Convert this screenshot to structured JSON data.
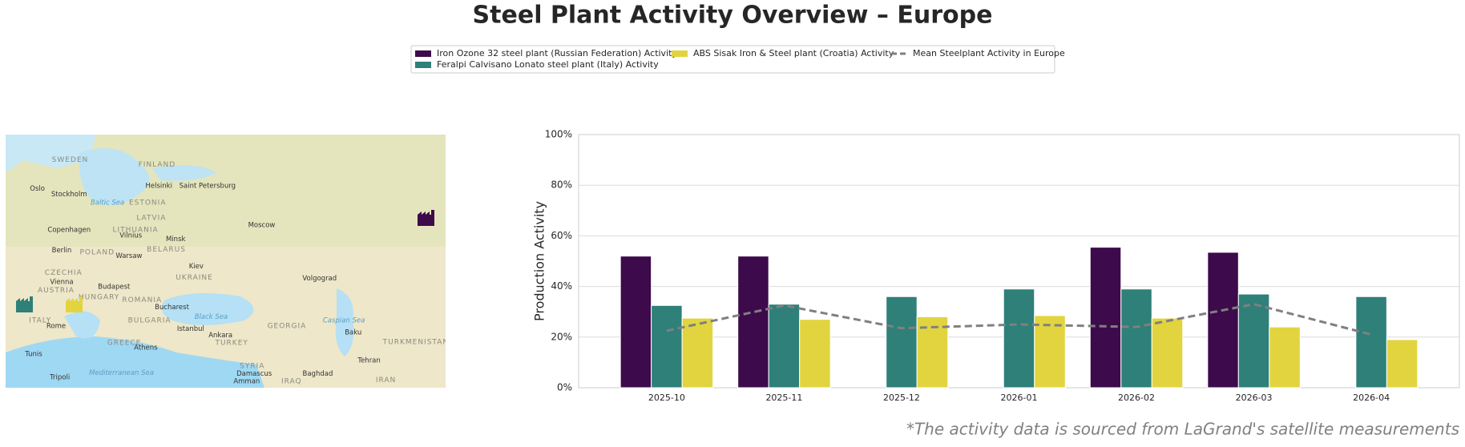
{
  "chart_data": {
    "type": "bar",
    "title": "Steel Plant Activity Overview – Europe",
    "ylabel": "Production Activity",
    "footnote": "*The activity data is sourced from LaGrand's satellite measurements",
    "categories": [
      "2025-10",
      "2025-11",
      "2025-12",
      "2026-01",
      "2026-02",
      "2026-03",
      "2026-04"
    ],
    "series": [
      {
        "name": "Iron Ozone 32 steel plant (Russian Federation) Activity",
        "color": "#3d0a4b",
        "values": [
          52,
          52,
          null,
          null,
          55.5,
          53.5,
          null
        ]
      },
      {
        "name": "Feralpi Calvisano Lonato steel plant (Italy) Activity",
        "color": "#2e8079",
        "values": [
          32.5,
          33,
          36,
          39,
          39,
          37,
          36
        ]
      },
      {
        "name": "ABS Sisak Iron & Steel plant (Croatia) Activity",
        "color": "#e2d43f",
        "values": [
          27.5,
          27,
          28,
          28.5,
          27.5,
          24,
          19
        ]
      },
      {
        "name": "Mean Steelplant Activity in Europe",
        "color": "#808080",
        "type": "line",
        "dash": true,
        "values": [
          22.5,
          32.5,
          23.5,
          25,
          24,
          33,
          21
        ]
      }
    ],
    "ylim": [
      0,
      100
    ],
    "yticks": [
      {
        "value": 0,
        "label": "0%"
      },
      {
        "value": 20,
        "label": "20%"
      },
      {
        "value": 40,
        "label": "40%"
      },
      {
        "value": 60,
        "label": "60%"
      },
      {
        "value": 80,
        "label": "80%"
      },
      {
        "value": 100,
        "label": "100%"
      }
    ],
    "grid": true,
    "legend": "top"
  },
  "map": {
    "labels": [
      "SWEDEN",
      "FINLAND",
      "Helsinki",
      "Saint Petersburg",
      "Oslo",
      "Stockholm",
      "Baltic Sea",
      "ESTONIA",
      "LATVIA",
      "Copenhagen",
      "LITHUANIA",
      "Vilnius",
      "Moscow",
      "Minsk",
      "BELARUS",
      "Berlin",
      "POLAND",
      "Warsaw",
      "Kiev",
      "UKRAINE",
      "Volgograd",
      "CZECHIA",
      "Vienna",
      "Budapest",
      "AUSTRIA",
      "HUNGARY",
      "ROMANIA",
      "Bucharest",
      "BULGARIA",
      "Black Sea",
      "GEORGIA",
      "Istanbul",
      "Ankara",
      "Baku",
      "Caspian Sea",
      "ITALY",
      "Rome",
      "TURKEY",
      "GREECE",
      "Athens",
      "Tunis",
      "TURKMENISTAN",
      "Tehran",
      "SYRIA",
      "Mediterranean Sea",
      "Damascus",
      "Baghdad",
      "Tripoli",
      "Amman",
      "IRAQ",
      "IRAN"
    ]
  }
}
